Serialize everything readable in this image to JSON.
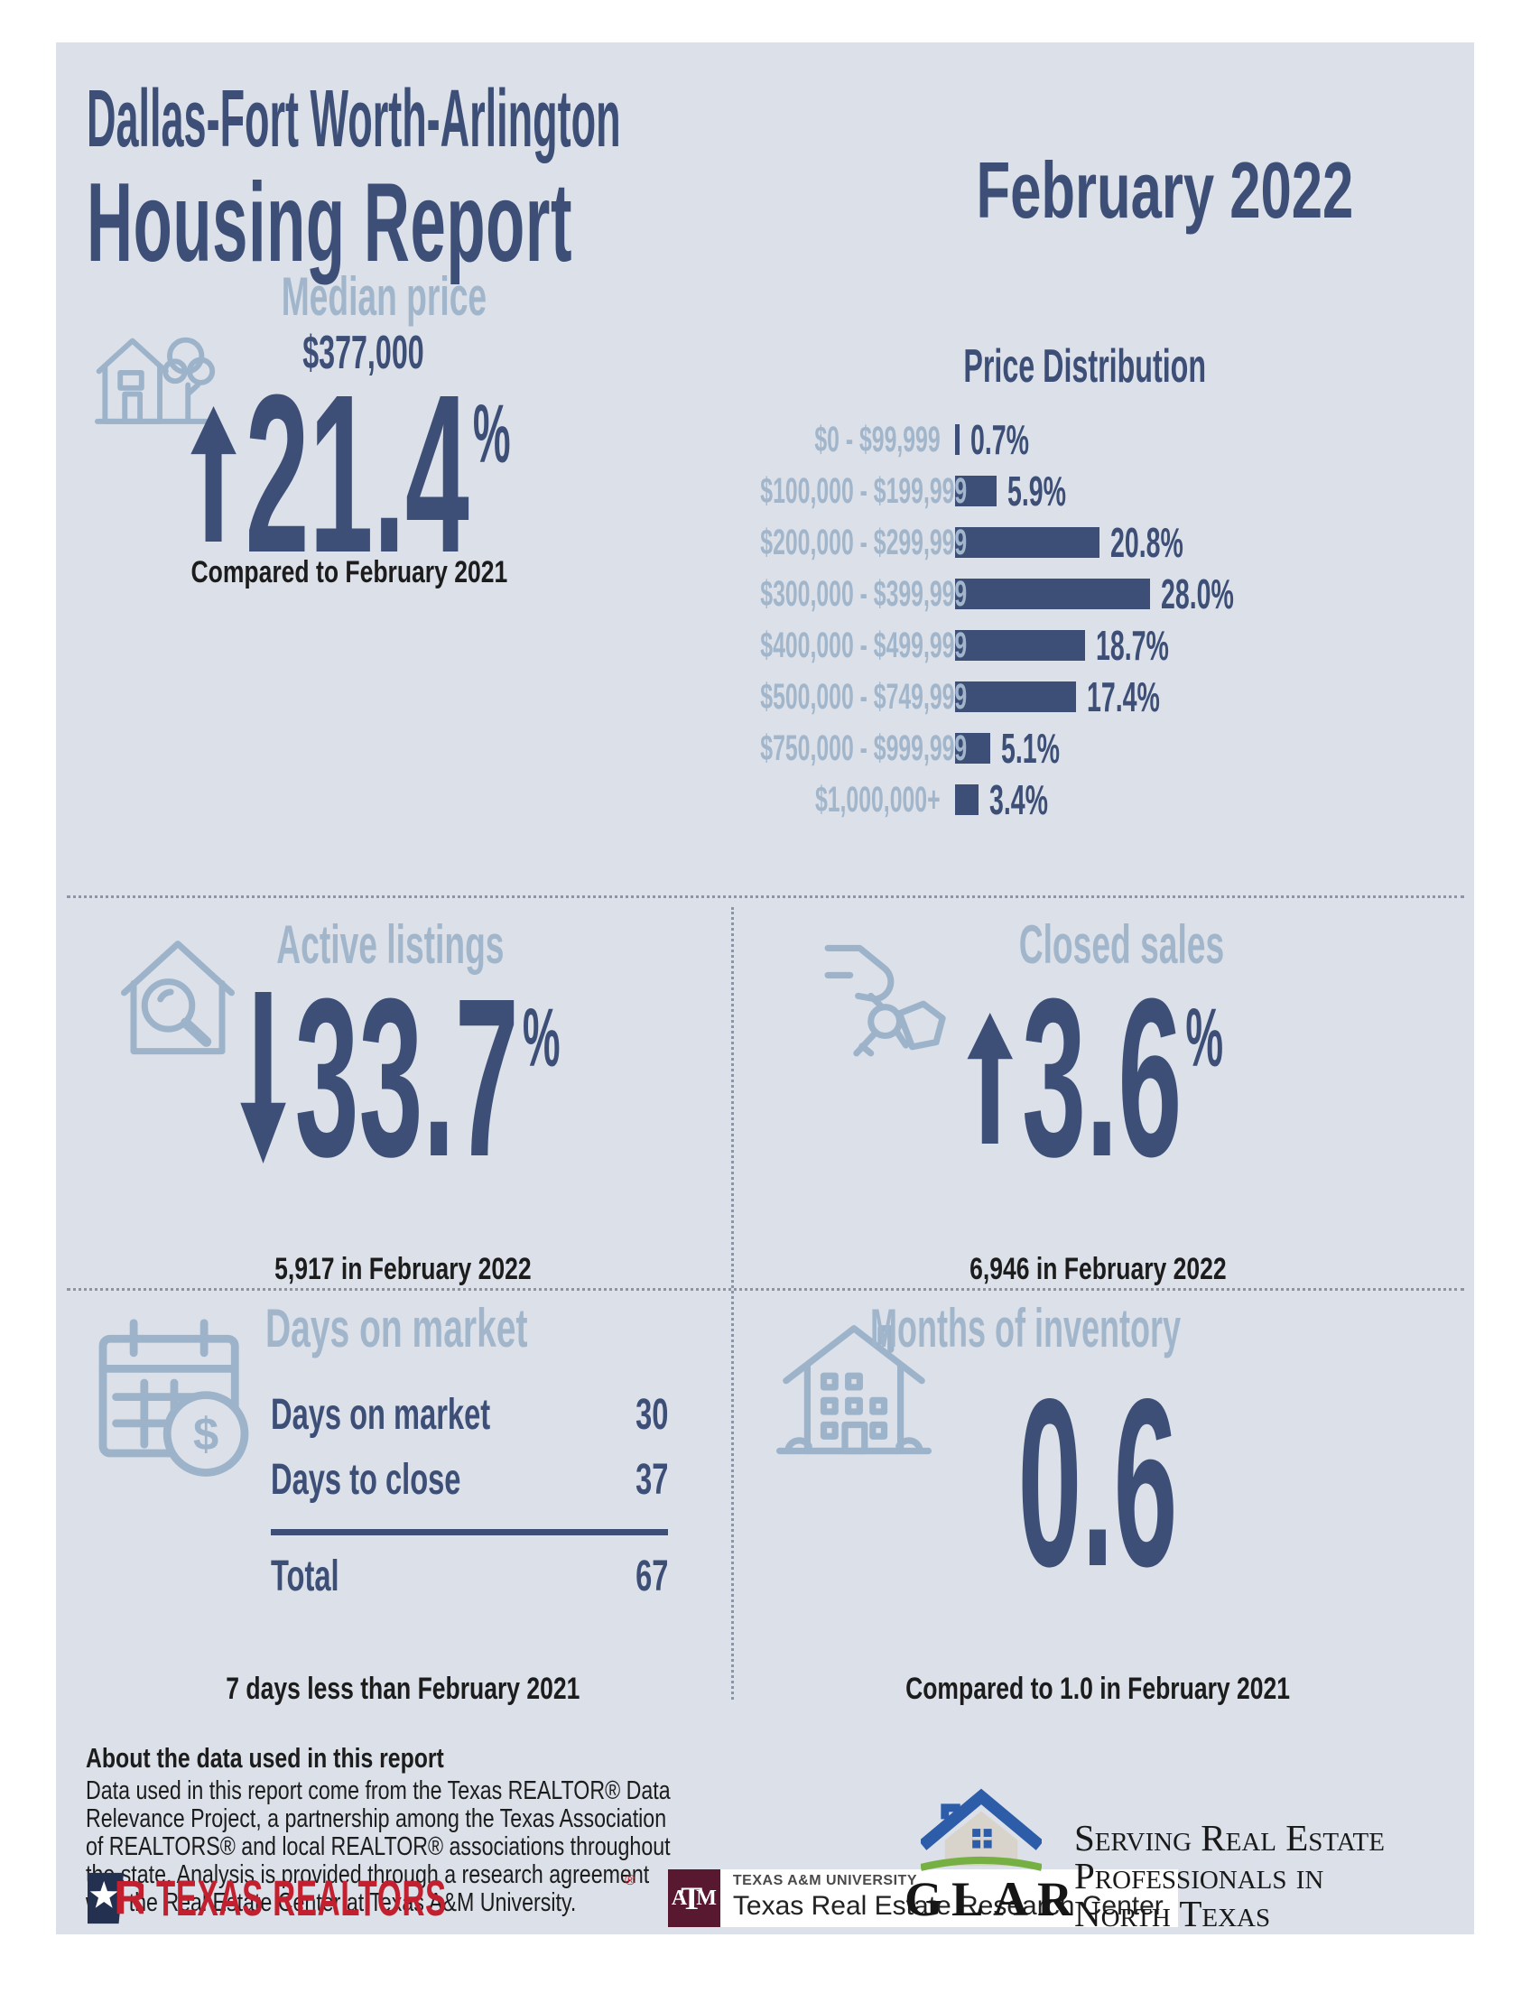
{
  "page": {
    "background": "#ffffff",
    "panel_bg": "#dbe0e9"
  },
  "colors": {
    "navy": "#3d4f77",
    "light_slate": "#a2b6cb",
    "icon_stroke": "#9db3ca",
    "black_text": "#1c1c1c",
    "divider_gray": "#8d95a5",
    "realtor_red": "#c3202f",
    "tr_navy": "#23304f",
    "tamu_maroon": "#581830",
    "glar_blue": "#2d5ca8",
    "glar_green": "#76b043",
    "glar_wall": "#d8d4cb"
  },
  "header": {
    "region": "Dallas-Fort Worth-Arlington",
    "title": "Housing Report",
    "month": "February 2022"
  },
  "median_price": {
    "label": "Median price",
    "value": "$377,000",
    "direction": "up",
    "change": "21.4",
    "percent_sign": "%",
    "caption": "Compared to February 2021"
  },
  "chart_data": {
    "type": "bar",
    "orientation": "horizontal",
    "title": "Price Distribution",
    "categories": [
      "$0 - $99,999",
      "$100,000 - $199,999",
      "$200,000 - $299,999",
      "$300,000 - $399,999",
      "$400,000 - $499,999",
      "$500,000 - $749,999",
      "$750,000 - $999,999",
      "$1,000,000+"
    ],
    "values": [
      0.7,
      5.9,
      20.8,
      28.0,
      18.7,
      17.4,
      5.1,
      3.4
    ],
    "value_labels": [
      "0.7%",
      "5.9%",
      "20.8%",
      "28.0%",
      "18.7%",
      "17.4%",
      "5.1%",
      "3.4%"
    ],
    "unit": "%",
    "xlim": [
      0,
      28
    ],
    "grid": false,
    "legend": false,
    "bar_color": "#3d4f77",
    "category_label_color": "#a2b6cb"
  },
  "active_listings": {
    "label": "Active listings",
    "direction": "down",
    "change": "33.7",
    "percent_sign": "%",
    "caption": "5,917 in February 2022"
  },
  "closed_sales": {
    "label": "Closed sales",
    "direction": "up",
    "change": "3.6",
    "percent_sign": "%",
    "caption": "6,946 in February 2022"
  },
  "days_on_market": {
    "label": "Days on market",
    "rows": [
      {
        "label": "Days on market",
        "value": "30"
      },
      {
        "label": "Days to close",
        "value": "37"
      }
    ],
    "total": {
      "label": "Total",
      "value": "67"
    },
    "caption": "7 days less than February 2021"
  },
  "months_of_inventory": {
    "label": "Months of inventory",
    "value": "0.6",
    "caption": "Compared to 1.0 in February 2021"
  },
  "about": {
    "heading": "About the data used in this report",
    "body": "Data used in this report come from the Texas REALTOR® Data Relevance Project, a partnership among the Texas Association of REALTORS® and local REALTOR® associations throughout the state. Analysis is provided through a research agreement with the Real Estate Center at Texas A&M University."
  },
  "logos": {
    "texas_realtors": {
      "monogram": "R",
      "name": "TEXAS REALTORS",
      "reg": "®"
    },
    "tamu": {
      "monogram": [
        "A",
        "T",
        "M"
      ],
      "university": "TEXAS A&M UNIVERSITY",
      "center": "Texas Real Estate Research Center"
    },
    "glar": {
      "name": "GLAR",
      "tagline": [
        "Serving Real Estate",
        "Professionals in",
        "North Texas"
      ]
    }
  },
  "icons": {
    "dollar_sign": "$"
  }
}
